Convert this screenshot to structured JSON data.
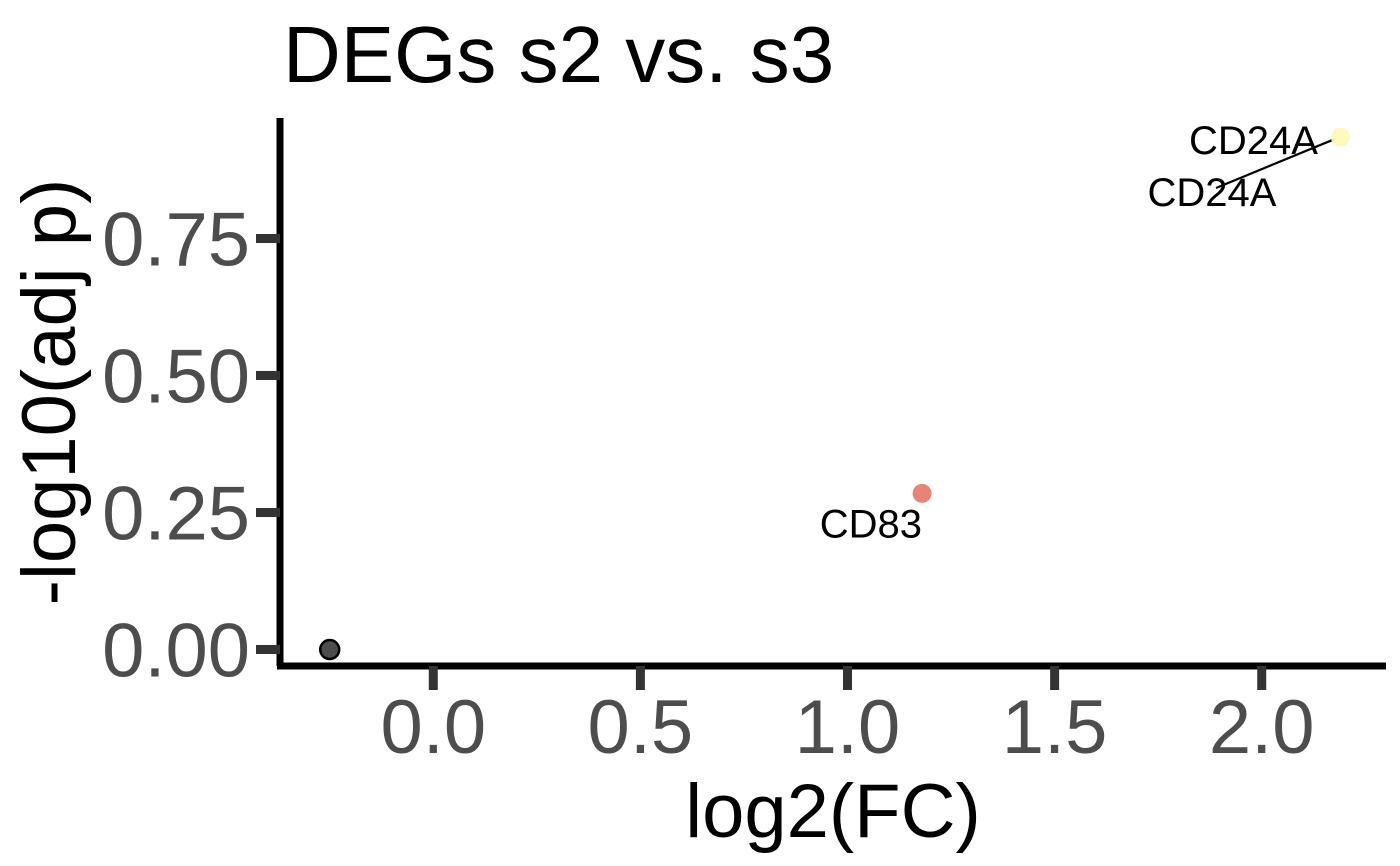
{
  "chart_data": {
    "type": "scatter",
    "title": "DEGs s2 vs. s3",
    "xlabel": "log2(FC)",
    "ylabel": "-log10(adj p)",
    "xlim": [
      -0.37,
      2.3
    ],
    "ylim": [
      -0.03,
      0.97
    ],
    "x_ticks": [
      0.0,
      0.5,
      1.0,
      1.5,
      2.0
    ],
    "x_tick_labels": [
      "0.0",
      "0.5",
      "1.0",
      "1.5",
      "2.0"
    ],
    "y_ticks": [
      0.0,
      0.25,
      0.5,
      0.75
    ],
    "y_tick_labels": [
      "0.00",
      "0.25",
      "0.50",
      "0.75"
    ],
    "grid": false,
    "points": [
      {
        "x": -0.25,
        "y": 0.0,
        "color": "#4d4d4d",
        "label": ""
      },
      {
        "x": 1.18,
        "y": 0.285,
        "color": "#e47a6b",
        "label": "CD83"
      },
      {
        "x": 2.19,
        "y": 0.935,
        "color": "#fff9b8",
        "label": "CD24A"
      }
    ],
    "annotations": [
      {
        "text": "CD24A",
        "x": 1.98,
        "y": 0.93
      },
      {
        "text": "CD24A",
        "x": 1.88,
        "y": 0.835
      }
    ]
  }
}
